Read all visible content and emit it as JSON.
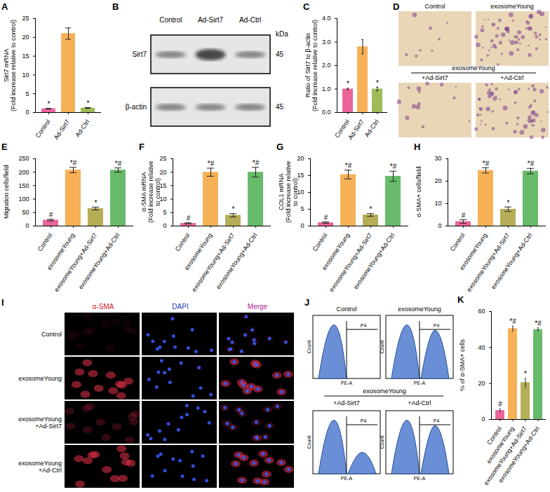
{
  "chart_data": [
    {
      "panel": "A",
      "type": "bar",
      "ylabel": "Sirt7 mRNA\n(Fold increase relative to control)",
      "categories": [
        "Control",
        "Ad-Sirt7",
        "Ad-Ctrl"
      ],
      "values": [
        1,
        21,
        1.2
      ],
      "errors": [
        0.1,
        1.5,
        0.1
      ],
      "colors": [
        "#e84a8a",
        "#f5a33a",
        "#8fae3a"
      ],
      "annotations": [
        "*",
        null,
        "*"
      ],
      "ylim": [
        0,
        25
      ],
      "yticks": [
        0,
        5,
        10,
        15,
        20,
        25
      ]
    },
    {
      "panel": "C",
      "type": "bar",
      "ylabel": "Ratio of Sirt7 to β-actin\n(Fold increase relative to control)",
      "categories": [
        "Control",
        "Ad-Sirt7",
        "Ad-Ctrl"
      ],
      "values": [
        1,
        2.8,
        1.0
      ],
      "errors": [
        0.03,
        0.3,
        0.08
      ],
      "colors": [
        "#e84a8a",
        "#f5a33a",
        "#8fae3a"
      ],
      "annotations": [
        "*",
        null,
        "*"
      ],
      "ylim": [
        0,
        4
      ],
      "yticks": [
        0,
        1,
        2,
        3,
        4
      ]
    },
    {
      "panel": "E",
      "type": "bar",
      "ylabel": "Migration cells/field",
      "categories": [
        "Control",
        "exosomeYoung",
        "exosomeYoung+Ad-Sirt7",
        "exosomeYoung+Ad-Ctrl"
      ],
      "values": [
        22,
        208,
        65,
        208
      ],
      "errors": [
        3,
        10,
        5,
        8
      ],
      "colors": [
        "#e84a8a",
        "#f5a33a",
        "#a9a03a",
        "#4caf50"
      ],
      "annotations": [
        "#",
        "*#",
        "*",
        "*#"
      ],
      "ylim": [
        0,
        250
      ],
      "yticks": [
        0,
        50,
        100,
        150,
        200,
        250
      ]
    },
    {
      "panel": "F",
      "type": "bar",
      "ylabel": "α-SMA mRNA\n(Fold increase relative to control)",
      "categories": [
        "Control",
        "exosomeYoung",
        "exosomeYoung+Ad-Sirt7",
        "exosomeYoung+Ad-Ctrl"
      ],
      "values": [
        1,
        20,
        4,
        20
      ],
      "errors": [
        0.2,
        1.5,
        0.6,
        1.8
      ],
      "colors": [
        "#e84a8a",
        "#f5a33a",
        "#a9a03a",
        "#4caf50"
      ],
      "annotations": [
        "#",
        "*#",
        "*",
        "*#"
      ],
      "ylim": [
        0,
        25
      ],
      "yticks": [
        0,
        5,
        10,
        15,
        20,
        25
      ]
    },
    {
      "panel": "G",
      "type": "bar",
      "ylabel": "COL1 mRNA\n(Fold increase relative to control)",
      "categories": [
        "Control",
        "exosomeYoung",
        "exosomeYoung+Ad-Sirt7",
        "exosomeYoung+Ad-Ctrl"
      ],
      "values": [
        1,
        15.3,
        3.3,
        14.8
      ],
      "errors": [
        0.2,
        1.3,
        0.4,
        1.5
      ],
      "colors": [
        "#e84a8a",
        "#f5a33a",
        "#a9a03a",
        "#4caf50"
      ],
      "annotations": [
        "#",
        "*#",
        "*",
        "*#"
      ],
      "ylim": [
        0,
        20
      ],
      "yticks": [
        0,
        5,
        10,
        15,
        20
      ]
    },
    {
      "panel": "H",
      "type": "bar",
      "ylabel": "α-SMA+ cells/field",
      "categories": [
        "Control",
        "exosomeYoung",
        "exosomeYoung+Ad-Sirt7",
        "exosomeYoung+Ad-Ctrl"
      ],
      "values": [
        2,
        24.8,
        7.5,
        24.5
      ],
      "errors": [
        0.8,
        1.2,
        1,
        1.2
      ],
      "colors": [
        "#e84a8a",
        "#f5a33a",
        "#a9a03a",
        "#4caf50"
      ],
      "annotations": [
        "#",
        "*#",
        "*",
        "*#"
      ],
      "ylim": [
        0,
        30
      ],
      "yticks": [
        0,
        10,
        20,
        30
      ]
    },
    {
      "panel": "K",
      "type": "bar",
      "ylabel": "% of α-SMA+ cells",
      "categories": [
        "Control",
        "exosomeYoung",
        "exosomeYoung+Ad-Sirt7",
        "exosomeYoung+Ad-Ctrl"
      ],
      "values": [
        5,
        50.5,
        20.5,
        50
      ],
      "errors": [
        1,
        1.5,
        2.5,
        1
      ],
      "colors": [
        "#e84a8a",
        "#f5a33a",
        "#a9a03a",
        "#4caf50"
      ],
      "annotations": [
        "#",
        "*#",
        "*",
        "*#"
      ],
      "ylim": [
        0,
        60
      ],
      "yticks": [
        0,
        20,
        40,
        60
      ]
    }
  ],
  "blot": {
    "panel": "B",
    "columns": [
      "Control",
      "Ad-Sirt7",
      "Ad-Ctrl"
    ],
    "unit": "kDa",
    "rows": [
      {
        "name": "Sirt7",
        "size": "45"
      },
      {
        "name": "β-actin",
        "size": "45"
      }
    ]
  },
  "migration_images": {
    "panel": "D",
    "top": [
      "Control",
      "exosomeYoung"
    ],
    "group": "exosomeYoung",
    "bottom": [
      "+Ad-Sirt7",
      "+Ad-Ctrl"
    ]
  },
  "immunofluorescence": {
    "panel": "I",
    "channels": [
      "α-SMA",
      "DAPI",
      "Merge"
    ],
    "rows": [
      "Control",
      "exosomeYoung",
      "exosomeYoung\n+Ad-Sirt7",
      "exosomeYoung\n+Ad-Ctrl"
    ]
  },
  "flow": {
    "panel": "J",
    "top": [
      "Control",
      "exosomeYoung"
    ],
    "group": "exosomeYoung",
    "bottom": [
      "+Ad-Sirt7",
      "+Ad-Ctrl"
    ],
    "x_label": "PE-A",
    "y_label": "Count",
    "gate": "P4"
  }
}
